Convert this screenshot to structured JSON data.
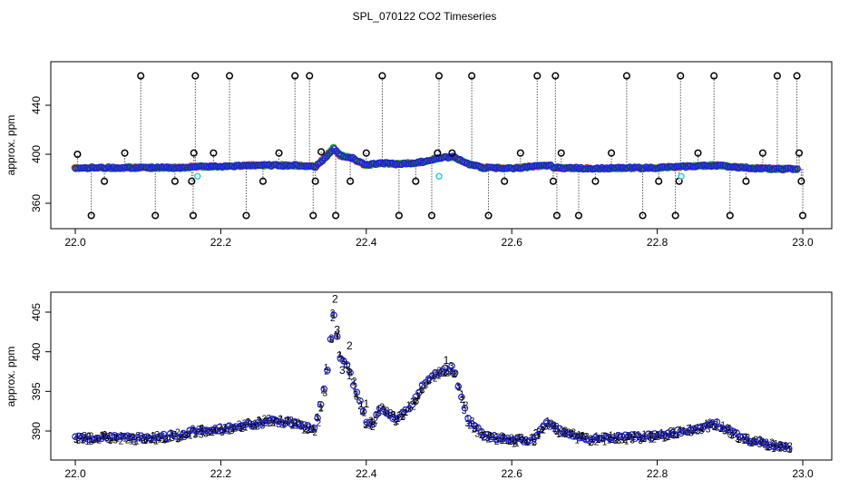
{
  "chart_data": [
    {
      "type": "scatter",
      "title": "SPL_070122  CO2 Timeseries",
      "xlabel": "",
      "ylabel": "approx. ppm",
      "xlim": [
        22.0,
        23.0
      ],
      "ylim": [
        340,
        470
      ],
      "x_ticks": [
        22.0,
        22.2,
        22.4,
        22.6,
        22.8,
        23.0
      ],
      "x_tick_labels": [
        "22.0",
        "22.2",
        "22.4",
        "22.6",
        "22.8",
        "23.0"
      ],
      "y_ticks": [
        360,
        400,
        440
      ],
      "y_tick_labels": [
        "360",
        "400",
        "440"
      ],
      "main_series": {
        "name": "CO2 (red/green/blue overlaid points)",
        "x": [
          22.0,
          22.05,
          22.1,
          22.15,
          22.16,
          22.2,
          22.25,
          22.3,
          22.33,
          22.345,
          22.355,
          22.365,
          22.38,
          22.4,
          22.42,
          22.44,
          22.47,
          22.5,
          22.52,
          22.54,
          22.56,
          22.6,
          22.65,
          22.66,
          22.7,
          22.8,
          22.84,
          22.88,
          22.92,
          22.96,
          22.99
        ],
        "y": [
          389,
          389,
          389,
          389,
          390,
          390,
          391,
          391,
          390,
          398,
          405,
          399,
          397,
          391,
          393,
          392,
          393,
          397,
          398,
          392,
          389,
          388.5,
          391,
          389,
          388.5,
          389,
          390,
          391,
          389,
          388,
          388
        ]
      },
      "outliers": {
        "name": "black circles (flagged spikes)",
        "x": [
          22.003,
          22.022,
          22.04,
          22.068,
          22.09,
          22.11,
          22.137,
          22.16,
          22.162,
          22.163,
          22.165,
          22.19,
          22.212,
          22.235,
          22.258,
          22.28,
          22.302,
          22.322,
          22.327,
          22.33,
          22.338,
          22.358,
          22.378,
          22.4,
          22.422,
          22.445,
          22.468,
          22.49,
          22.498,
          22.5,
          22.518,
          22.545,
          22.568,
          22.59,
          22.612,
          22.635,
          22.657,
          22.66,
          22.662,
          22.668,
          22.692,
          22.715,
          22.737,
          22.758,
          22.78,
          22.802,
          22.825,
          22.83,
          22.832,
          22.856,
          22.878,
          22.9,
          22.922,
          22.945,
          22.965,
          22.992,
          22.995,
          22.998,
          23.0
        ],
        "y": [
          400,
          350,
          378,
          401,
          464,
          350,
          378,
          378,
          350,
          401,
          464,
          401,
          464,
          350,
          378,
          401,
          464,
          464,
          350,
          378,
          402,
          350,
          378,
          401,
          464,
          350,
          378,
          350,
          401,
          464,
          401,
          464,
          350,
          378,
          401,
          464,
          378,
          464,
          350,
          401,
          350,
          378,
          401,
          464,
          350,
          378,
          350,
          378,
          464,
          401,
          464,
          350,
          378,
          401,
          464,
          464,
          401,
          378,
          350
        ]
      },
      "cyan_points": {
        "x": [
          22.168,
          22.5,
          22.833
        ],
        "y": [
          382,
          382,
          382
        ]
      }
    },
    {
      "type": "scatter",
      "title": "",
      "xlabel": "",
      "ylabel": "approx. ppm",
      "xlim": [
        22.0,
        23.0
      ],
      "ylim": [
        387.0,
        407.5
      ],
      "x_ticks": [
        22.0,
        22.2,
        22.4,
        22.6,
        22.8,
        23.0
      ],
      "x_tick_labels": [
        "22.0",
        "22.2",
        "22.4",
        "22.6",
        "22.8",
        "23.0"
      ],
      "y_ticks": [
        390,
        395,
        400,
        405
      ],
      "y_tick_labels": [
        "390",
        "395",
        "400",
        "405"
      ],
      "point_labels": [
        "1",
        "2",
        "3"
      ],
      "series_colors": [
        "#e0102a",
        "#16b216",
        "#1f22d6"
      ],
      "series": [
        {
          "name": "1",
          "x": [
            22.0,
            22.05,
            22.1,
            22.15,
            22.16,
            22.2,
            22.25,
            22.27,
            22.3,
            22.32,
            22.33,
            22.345,
            22.355,
            22.365,
            22.375,
            22.39,
            22.4,
            22.41,
            22.42,
            22.44,
            22.46,
            22.48,
            22.5,
            22.52,
            22.54,
            22.56,
            22.6,
            22.63,
            22.65,
            22.66,
            22.7,
            22.75,
            22.8,
            22.83,
            22.85,
            22.88,
            22.9,
            22.92,
            22.95,
            22.97,
            22.99
          ],
          "y": [
            389.2,
            389.2,
            389.1,
            389.6,
            390.0,
            390.2,
            391.0,
            391.5,
            391.0,
            390.5,
            390.2,
            396.5,
            405.0,
            399.0,
            398.0,
            394.0,
            391.0,
            391.0,
            393.0,
            391.5,
            393.0,
            396.0,
            397.5,
            398.0,
            391.5,
            389.5,
            388.8,
            389.0,
            391.2,
            390.3,
            389.0,
            389.2,
            389.4,
            389.9,
            390.2,
            391.0,
            390.0,
            389.0,
            388.5,
            388.0,
            387.8
          ]
        }
      ],
      "spike_labels": [
        {
          "label": "2",
          "x": 22.357,
          "y": 406.2
        },
        {
          "label": "2",
          "x": 22.377,
          "y": 400.3
        },
        {
          "label": "1",
          "x": 22.51,
          "y": 398.5
        },
        {
          "label": "3",
          "x": 22.36,
          "y": 402.3
        },
        {
          "label": "3",
          "x": 22.367,
          "y": 397.2
        },
        {
          "label": "1",
          "x": 22.4,
          "y": 393.0
        }
      ]
    }
  ]
}
